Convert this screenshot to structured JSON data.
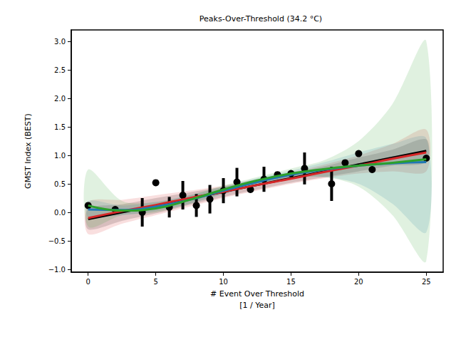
{
  "chart_data": {
    "type": "scatter",
    "title": "Peaks-Over-Threshold (34.2 °C)",
    "x_label": "# Event Over Threshold\n[1 / Year]",
    "y_label": "GMST Index (BEST)",
    "x": [
      0,
      2,
      4,
      5,
      6,
      7,
      8,
      9,
      10,
      11,
      12,
      13,
      14,
      15,
      16,
      18,
      19,
      20,
      21,
      25
    ],
    "values": [
      0.12,
      0.05,
      0.0,
      0.52,
      0.09,
      0.3,
      0.12,
      0.23,
      0.38,
      0.53,
      0.4,
      0.58,
      0.66,
      0.68,
      0.77,
      0.5,
      0.87,
      1.03,
      0.75,
      0.95
    ],
    "errors": [
      0,
      0,
      0.25,
      0,
      0.18,
      0.25,
      0.2,
      0.25,
      0.22,
      0.25,
      0,
      0.22,
      0,
      0,
      0.28,
      0.3,
      0,
      0,
      0,
      0
    ],
    "color": "#000000",
    "marker": "circle",
    "fits": {
      "x": [
        0,
        2.5,
        5,
        7.5,
        10,
        12.5,
        15,
        17.5,
        20,
        22.5,
        25
      ],
      "series": [
        {
          "color": "#000000",
          "values": [
            -0.12,
            0,
            0.12,
            0.24,
            0.36,
            0.48,
            0.6,
            0.72,
            0.84,
            0.96,
            1.08
          ],
          "lower": [
            -0.3,
            -0.15,
            -0.02,
            0.13,
            0.27,
            0.4,
            0.52,
            0.62,
            0.72,
            0.82,
            0.88
          ],
          "upper": [
            0.06,
            0.14,
            0.25,
            0.35,
            0.45,
            0.56,
            0.68,
            0.81,
            0.96,
            1.1,
            1.28
          ]
        },
        {
          "color": "#d62728",
          "values": [
            -0.1,
            0.02,
            0.13,
            0.25,
            0.36,
            0.48,
            0.59,
            0.71,
            0.82,
            0.94,
            1.05
          ],
          "lower": [
            -0.38,
            -0.2,
            -0.05,
            0.1,
            0.25,
            0.38,
            0.5,
            0.6,
            0.68,
            0.72,
            0.72
          ],
          "upper": [
            0.18,
            0.22,
            0.3,
            0.38,
            0.47,
            0.58,
            0.7,
            0.84,
            1.0,
            1.2,
            1.45
          ]
        },
        {
          "color": "#1f77b4",
          "values": [
            0.05,
            0.04,
            0.1,
            0.22,
            0.38,
            0.53,
            0.66,
            0.75,
            0.82,
            0.86,
            0.88
          ],
          "lower": [
            -0.08,
            -0.05,
            0.02,
            0.15,
            0.32,
            0.47,
            0.6,
            0.62,
            0.5,
            0.15,
            -0.35
          ],
          "upper": [
            0.2,
            0.12,
            0.18,
            0.3,
            0.45,
            0.6,
            0.73,
            0.88,
            1.05,
            1.2,
            1.3
          ]
        },
        {
          "color": "#2ca02c",
          "values": [
            0.12,
            0.03,
            0.07,
            0.22,
            0.4,
            0.56,
            0.68,
            0.76,
            0.82,
            0.87,
            0.93
          ],
          "lower": [
            -0.25,
            -0.05,
            0.0,
            0.15,
            0.33,
            0.5,
            0.6,
            0.62,
            0.45,
            -0.05,
            -0.85
          ],
          "upper": [
            0.75,
            0.2,
            0.18,
            0.3,
            0.47,
            0.62,
            0.77,
            0.92,
            1.25,
            1.9,
            3.0
          ]
        }
      ]
    },
    "xlim": [
      -1.25,
      26.25
    ],
    "xticks": [
      0,
      5,
      10,
      15,
      20,
      25
    ],
    "ylim": [
      -1.05,
      3.2
    ],
    "yticks": [
      {
        "value": -1.0,
        "label": "−1.0"
      },
      {
        "value": -0.5,
        "label": "−0.5"
      },
      {
        "value": 0,
        "label": "0.0"
      },
      {
        "value": 0.5,
        "label": "0.5"
      },
      {
        "value": 1.0,
        "label": "1.0"
      },
      {
        "value": 1.5,
        "label": "1.5"
      },
      {
        "value": 2.0,
        "label": "2.0"
      },
      {
        "value": 2.5,
        "label": "2.5"
      },
      {
        "value": 3.0,
        "label": "3.0"
      }
    ],
    "grid": false
  }
}
